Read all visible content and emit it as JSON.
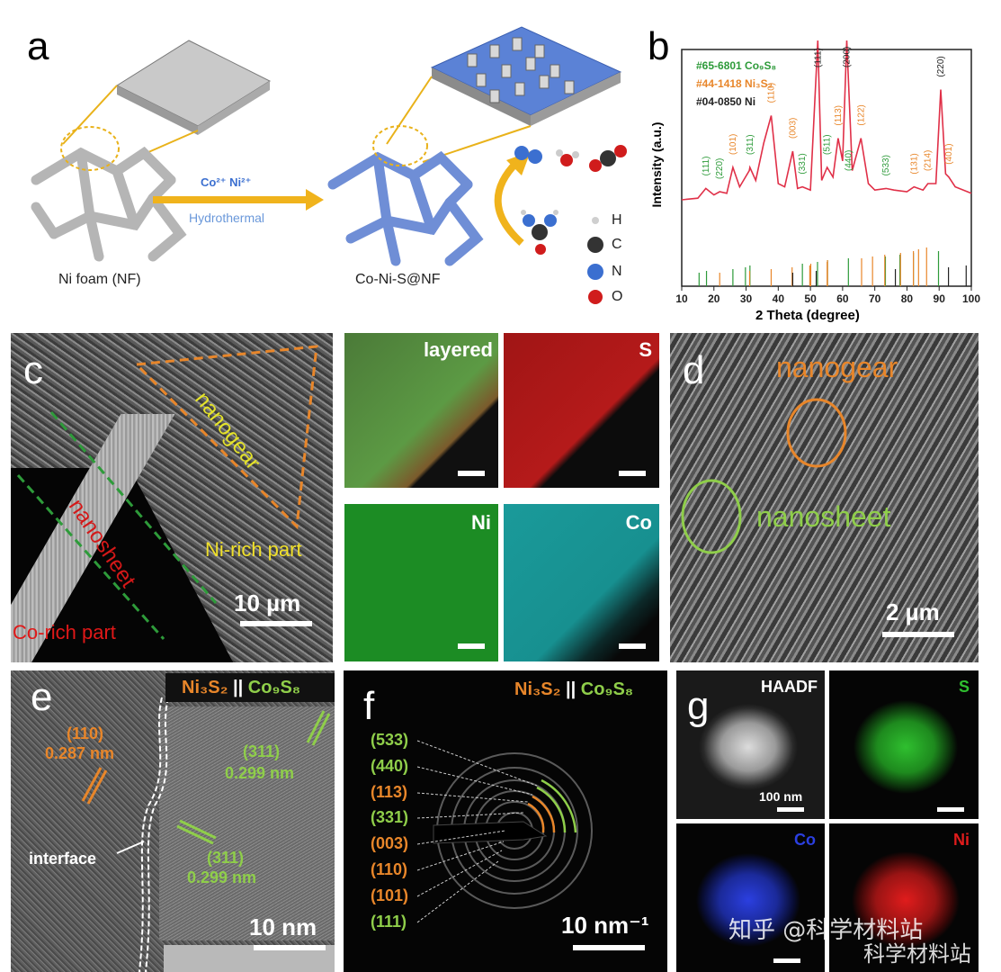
{
  "panel_a": {
    "letter": "a",
    "arrow_top": "Co²⁺ Ni²⁺",
    "arrow_bottom": "Hydrothermal",
    "label_left": "Ni foam (NF)",
    "label_right": "Co-Ni-S@NF",
    "legend": [
      "H",
      "C",
      "N",
      "O"
    ]
  },
  "panel_b": {
    "letter": "b",
    "legend": [
      {
        "text": "#65-6801 Co₉S₈",
        "color": "#2e9b3a"
      },
      {
        "text": "#44-1418 Ni₃S₂",
        "color": "#e8862a"
      },
      {
        "text": "#04-0850 Ni",
        "color": "#222222"
      }
    ],
    "ylabel": "Intensity (a.u.)",
    "xlabel": "2 Theta (degree)",
    "xticks": [
      "10",
      "20",
      "30",
      "40",
      "50",
      "60",
      "70",
      "80",
      "90",
      "100"
    ],
    "peak_labels": [
      {
        "x": 17.5,
        "text": "(111)",
        "color": "#2e9b3a"
      },
      {
        "x": 21.8,
        "text": "(220)",
        "color": "#2e9b3a"
      },
      {
        "x": 25.9,
        "text": "(101)",
        "color": "#e8862a"
      },
      {
        "x": 31.2,
        "text": "(311)",
        "color": "#2e9b3a"
      },
      {
        "x": 37.8,
        "text": "(110)",
        "color": "#e8862a"
      },
      {
        "x": 44.5,
        "text": "(003)",
        "color": "#e8862a"
      },
      {
        "x": 47.5,
        "text": "(331)",
        "color": "#2e9b3a"
      },
      {
        "x": 52.3,
        "text": "(111)",
        "color": "#222222"
      },
      {
        "x": 55.2,
        "text": "(511)",
        "color": "#2e9b3a"
      },
      {
        "x": 58.6,
        "text": "(113)",
        "color": "#e8862a"
      },
      {
        "x": 61.3,
        "text": "(200)",
        "color": "#222222"
      },
      {
        "x": 61.8,
        "text": "(440)",
        "color": "#2e9b3a"
      },
      {
        "x": 65.7,
        "text": "(122)",
        "color": "#e8862a"
      },
      {
        "x": 73.5,
        "text": "(533)",
        "color": "#2e9b3a"
      },
      {
        "x": 82.2,
        "text": "(131)",
        "color": "#e8862a"
      },
      {
        "x": 86.5,
        "text": "(214)",
        "color": "#e8862a"
      },
      {
        "x": 90.5,
        "text": "(220)",
        "color": "#222222"
      },
      {
        "x": 93.0,
        "text": "(401)",
        "color": "#e8862a"
      }
    ]
  },
  "chart_data": {
    "type": "line",
    "xlabel": "2 Theta (degree)",
    "ylabel": "Intensity (a.u.)",
    "xlim": [
      10,
      100
    ],
    "series": [
      {
        "name": "",
        "x": [
          10,
          15,
          17.5,
          20,
          21.8,
          24,
          25.9,
          28,
          31,
          31.2,
          33,
          35.5,
          37.8,
          40,
          42,
          44.5,
          46,
          47.5,
          50,
          52.3,
          53.5,
          55.2,
          57,
          58.6,
          60,
          61.3,
          63,
          65.7,
          68,
          70,
          73.5,
          76,
          80,
          82.2,
          85,
          86.5,
          89,
          90.5,
          92,
          93,
          95,
          100
        ],
        "y": [
          0.1,
          0.11,
          0.17,
          0.13,
          0.15,
          0.14,
          0.3,
          0.18,
          0.28,
          0.3,
          0.22,
          0.45,
          0.62,
          0.2,
          0.18,
          0.4,
          0.17,
          0.18,
          0.16,
          1.0,
          0.22,
          0.3,
          0.24,
          0.48,
          0.34,
          1.0,
          0.28,
          0.48,
          0.2,
          0.16,
          0.17,
          0.16,
          0.15,
          0.18,
          0.16,
          0.2,
          0.2,
          0.78,
          0.26,
          0.24,
          0.18,
          0.14
        ]
      }
    ],
    "reference_lines": [
      {
        "name": "#65-6801 Co9S8",
        "color": "#2e9b3a",
        "x": [
          15.4,
          17.7,
          25.9,
          29.8,
          31.2,
          47.5,
          52.2,
          55.3,
          61.8,
          73.3,
          77.8,
          82.0,
          89.8
        ]
      },
      {
        "name": "#44-1418 Ni3S2",
        "color": "#e8862a",
        "x": [
          21.8,
          31.1,
          37.8,
          44.3,
          49.8,
          50.1,
          55.2,
          55.3,
          65.9,
          69.3,
          73.1,
          78.0,
          82.0,
          83.6,
          86.1
        ]
      },
      {
        "name": "#04-0850 Ni",
        "color": "#222222",
        "x": [
          44.5,
          51.8,
          76.4,
          92.9,
          98.4
        ]
      }
    ]
  },
  "panel_c": {
    "letter": "c",
    "label_nanogear": "nanogear",
    "label_nanosheet": "nanosheet",
    "label_ni_rich": "Ni-rich part",
    "label_co_rich": "Co-rich part",
    "scale": "10 µm",
    "maps": [
      {
        "label": "layered",
        "color": "#4a8a3a"
      },
      {
        "label": "S",
        "color": "#b01818"
      },
      {
        "label": "Ni",
        "color": "#1e9a2a"
      },
      {
        "label": "Co",
        "color": "#1aa0a0"
      }
    ]
  },
  "panel_d": {
    "letter": "d",
    "label_nanogear": "nanogear",
    "label_nanosheet": "nanosheet",
    "scale": "2 µm"
  },
  "panel_e": {
    "letter": "e",
    "header_a": "Ni₃S₂",
    "header_sep": " || ",
    "header_b": "Co₉S₈",
    "label_110": "(110)",
    "label_110_d": "0.287 nm",
    "label_311a": "(311)",
    "label_311a_d": "0.299 nm",
    "label_311b": "(311)",
    "label_311b_d": "0.299 nm",
    "interface": "interface",
    "scale": "10 nm"
  },
  "panel_f": {
    "letter": "f",
    "header_a": "Ni₃S₂",
    "header_sep": " || ",
    "header_b": "Co₉S₈",
    "rings": [
      {
        "text": "(533)",
        "color": "#8fce4a"
      },
      {
        "text": "(440)",
        "color": "#8fce4a"
      },
      {
        "text": "(113)",
        "color": "#e8862a"
      },
      {
        "text": "(331)",
        "color": "#8fce4a"
      },
      {
        "text": "(003)",
        "color": "#e8862a"
      },
      {
        "text": "(110)",
        "color": "#e8862a"
      },
      {
        "text": "(101)",
        "color": "#e8862a"
      },
      {
        "text": "(111)",
        "color": "#8fce4a"
      }
    ],
    "scale": "10 nm⁻¹"
  },
  "panel_g": {
    "letter": "g",
    "haadf": "HAADF",
    "scale": "100 nm",
    "maps": [
      {
        "label": "S",
        "color": "#2fbf2f"
      },
      {
        "label": "Co",
        "color": "#2b3fe0"
      },
      {
        "label": "Ni",
        "color": "#e01c1c"
      }
    ]
  },
  "watermark": {
    "line1": "知乎 @科学材料站",
    "line2": "科学材料站"
  }
}
